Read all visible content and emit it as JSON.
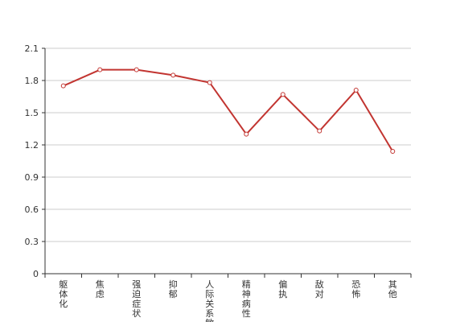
{
  "chart_data": {
    "type": "line",
    "title": "",
    "xlabel": "",
    "ylabel": "",
    "categories": [
      "躯体化",
      "焦虑",
      "强迫症状",
      "抑郁",
      "人际关系敏感",
      "精神病性",
      "偏执",
      "敌对",
      "恐怖",
      "其他"
    ],
    "series": [
      {
        "values": [
          1.75,
          1.9,
          1.9,
          1.85,
          1.78,
          1.3,
          1.67,
          1.33,
          1.71,
          1.14
        ]
      }
    ],
    "ylim": [
      0,
      2.1
    ],
    "yticks": [
      "0",
      "0.3",
      "0.6",
      "0.9",
      "1.2",
      "1.5",
      "1.8",
      "2.1"
    ],
    "grid": true,
    "colors": {
      "line": "#c23531",
      "marker_fill": "#ffffff",
      "grid": "#cccccc",
      "axis": "#333333"
    }
  }
}
